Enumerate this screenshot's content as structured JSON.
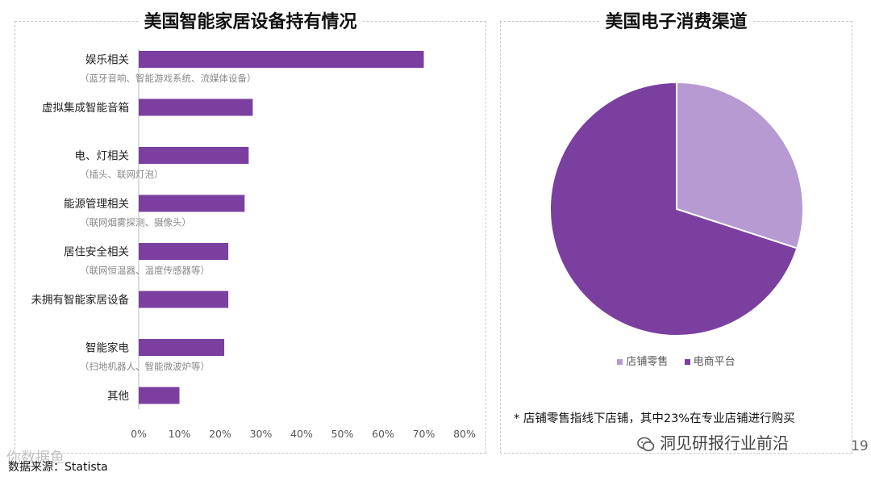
{
  "watermark": "你数据鱼",
  "source": "数据来源：Statista",
  "brand": "洞见研报行业前沿",
  "page_number": "19",
  "colors": {
    "bar": "#7b3fa0",
    "pie_store": "#b69ad1",
    "pie_ecommerce": "#7b3fa0"
  },
  "chart_data": [
    {
      "type": "bar",
      "orientation": "horizontal",
      "title": "美国智能家居设备持有情况",
      "categories": [
        "娱乐相关",
        "虚拟集成智能音箱",
        "电、灯相关",
        "能源管理相关",
        "居住安全相关",
        "未拥有智能家居设备",
        "智能家电",
        "其他"
      ],
      "subcategories": [
        "（蓝牙音响、智能游戏系统、流媒体设备）",
        "",
        "（插头、联网灯泡）",
        "（联网烟雾探测、摄像头）",
        "（联网恒温器、温度传感器等）",
        "",
        "（扫地机器人、智能微波炉等）",
        ""
      ],
      "values": [
        0.7,
        0.28,
        0.27,
        0.26,
        0.22,
        0.22,
        0.21,
        0.1
      ],
      "xlim": [
        0,
        0.8
      ],
      "xticks": [
        "0%",
        "10%",
        "20%",
        "30%",
        "40%",
        "50%",
        "60%",
        "70%",
        "80%"
      ],
      "grid": false
    },
    {
      "type": "pie",
      "title": "美国电子消费渠道",
      "labels": [
        "店铺零售",
        "电商平台"
      ],
      "values": [
        0.3,
        0.7
      ],
      "legend_position": "bottom",
      "note": "* 店铺零售指线下店铺，其中23%在专业店铺进行购买"
    }
  ]
}
